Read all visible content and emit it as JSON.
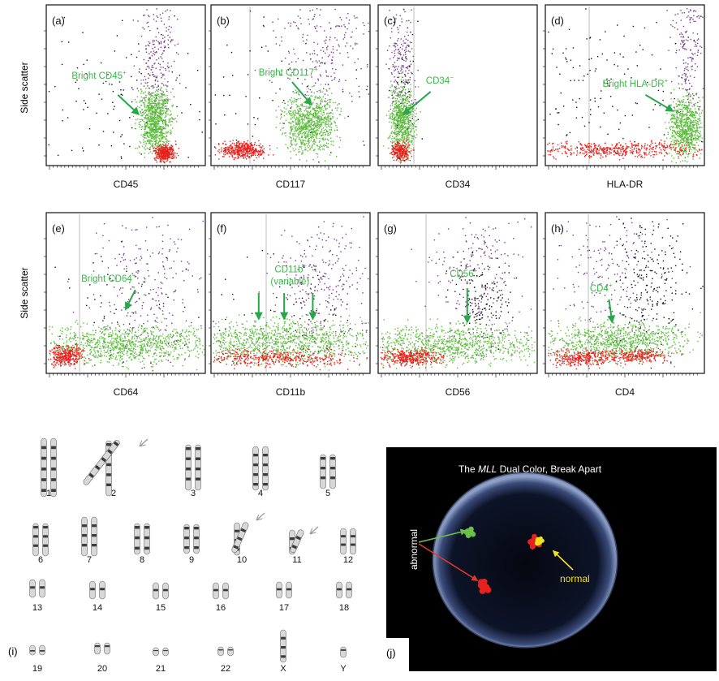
{
  "figure": {
    "y_axis_label": "Side scatter",
    "panels": [
      {
        "letter": "(a)",
        "xlabel": "CD45",
        "annotation": [
          "Bright CD45",
          "+"
        ]
      },
      {
        "letter": "(b)",
        "xlabel": "CD117",
        "annotation": [
          "Bright CD117",
          "+"
        ]
      },
      {
        "letter": "(c)",
        "xlabel": "CD34",
        "annotation": [
          "CD34",
          "−"
        ]
      },
      {
        "letter": "(d)",
        "xlabel": "HLA-DR",
        "annotation": [
          "Bright HLA-DR",
          "+"
        ]
      },
      {
        "letter": "(e)",
        "xlabel": "CD64",
        "annotation": [
          "Bright CD64",
          "+"
        ]
      },
      {
        "letter": "(f)",
        "xlabel": "CD11b",
        "annotation": [
          "CD11b",
          "+"
        ],
        "annotation_line2": "(variable)"
      },
      {
        "letter": "(g)",
        "xlabel": "CD56",
        "annotation": [
          "CD56",
          "+"
        ]
      },
      {
        "letter": "(h)",
        "xlabel": "CD4",
        "annotation": [
          "CD4",
          "+"
        ]
      }
    ],
    "karyotype": {
      "letter": "(i)",
      "chromosomes": [
        "1",
        "2",
        "3",
        "4",
        "5",
        "6",
        "7",
        "8",
        "9",
        "10",
        "11",
        "12",
        "13",
        "14",
        "15",
        "16",
        "17",
        "18",
        "19",
        "20",
        "21",
        "22",
        "X",
        "Y"
      ],
      "abnormal_marked": [
        "2",
        "10",
        "11"
      ]
    },
    "fish": {
      "letter": "(j)",
      "title_pre": "The ",
      "title_italic": "MLL",
      "title_post": " Dual Color, Break Apart",
      "label_abnormal": "abnormal",
      "label_normal": "normal"
    },
    "colors": {
      "green_population": "#5cbd3c",
      "red_population": "#e8211c",
      "purple_population": "#7a3a8c",
      "black_population": "#111111",
      "annotation_text": "#3db54a",
      "annotation_arrow": "#27a64a",
      "fish_nucleus": "#8fa0c8",
      "fish_yellow": "#f0e020"
    }
  }
}
